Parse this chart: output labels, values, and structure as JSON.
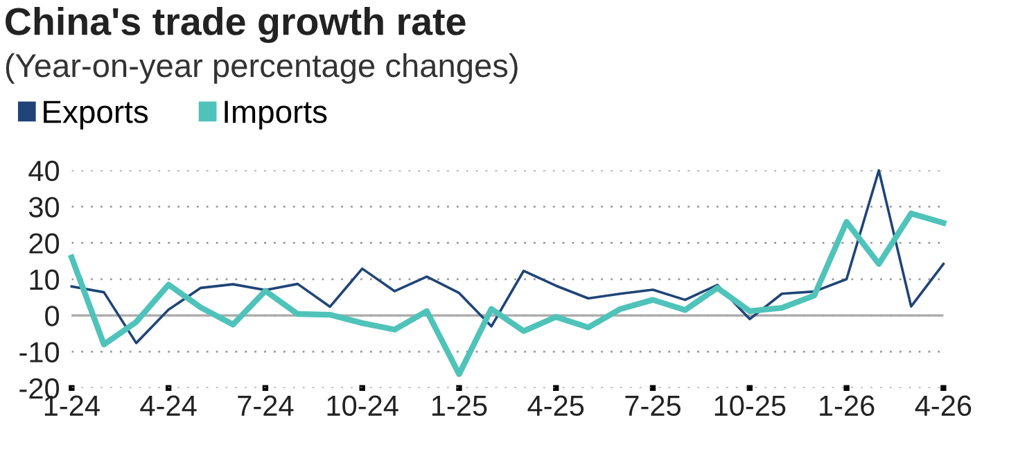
{
  "chart_data": {
    "type": "line",
    "title": "China's trade growth rate",
    "subtitle": "(Year-on-year percentage changes)",
    "categories": [
      "1-24",
      null,
      null,
      "4-24",
      null,
      null,
      "7-24",
      null,
      null,
      "10-24",
      null,
      null,
      "1-25",
      null,
      null,
      "4-25",
      null,
      null,
      "7-25",
      null,
      null,
      "10-25",
      null,
      null,
      "1-26",
      null,
      null,
      "4-26"
    ],
    "series": [
      {
        "name": "Exports",
        "color": "#1f4477",
        "values": [
          8.0,
          6.4,
          -7.6,
          1.6,
          7.6,
          8.6,
          7.0,
          8.7,
          2.4,
          12.9,
          6.7,
          10.7,
          6.2,
          -3.0,
          12.3,
          8.2,
          4.7,
          6.0,
          7.1,
          4.3,
          8.4,
          -1.0,
          6.0,
          6.6,
          10.0,
          40.0,
          2.5,
          14.2
        ]
      },
      {
        "name": "Imports",
        "color": "#4fc3b9",
        "values": [
          16.0,
          -8.0,
          -1.8,
          8.5,
          2.2,
          -2.5,
          6.8,
          0.4,
          0.2,
          -2.1,
          -3.9,
          1.2,
          -16.2,
          1.8,
          -4.3,
          -0.4,
          -3.3,
          1.8,
          4.3,
          1.5,
          7.6,
          1.2,
          2.1,
          5.5,
          25.8,
          14.2,
          28.1,
          25.5
        ]
      }
    ],
    "ylim": [
      -20,
      40
    ],
    "yticks": [
      -20,
      -10,
      0,
      10,
      20,
      30,
      40
    ],
    "grid": "y",
    "legend": "top left",
    "ref_lines": [
      {
        "axis": "y",
        "value": 0,
        "color": "#aaaaaa",
        "line_style": "solid"
      }
    ]
  }
}
